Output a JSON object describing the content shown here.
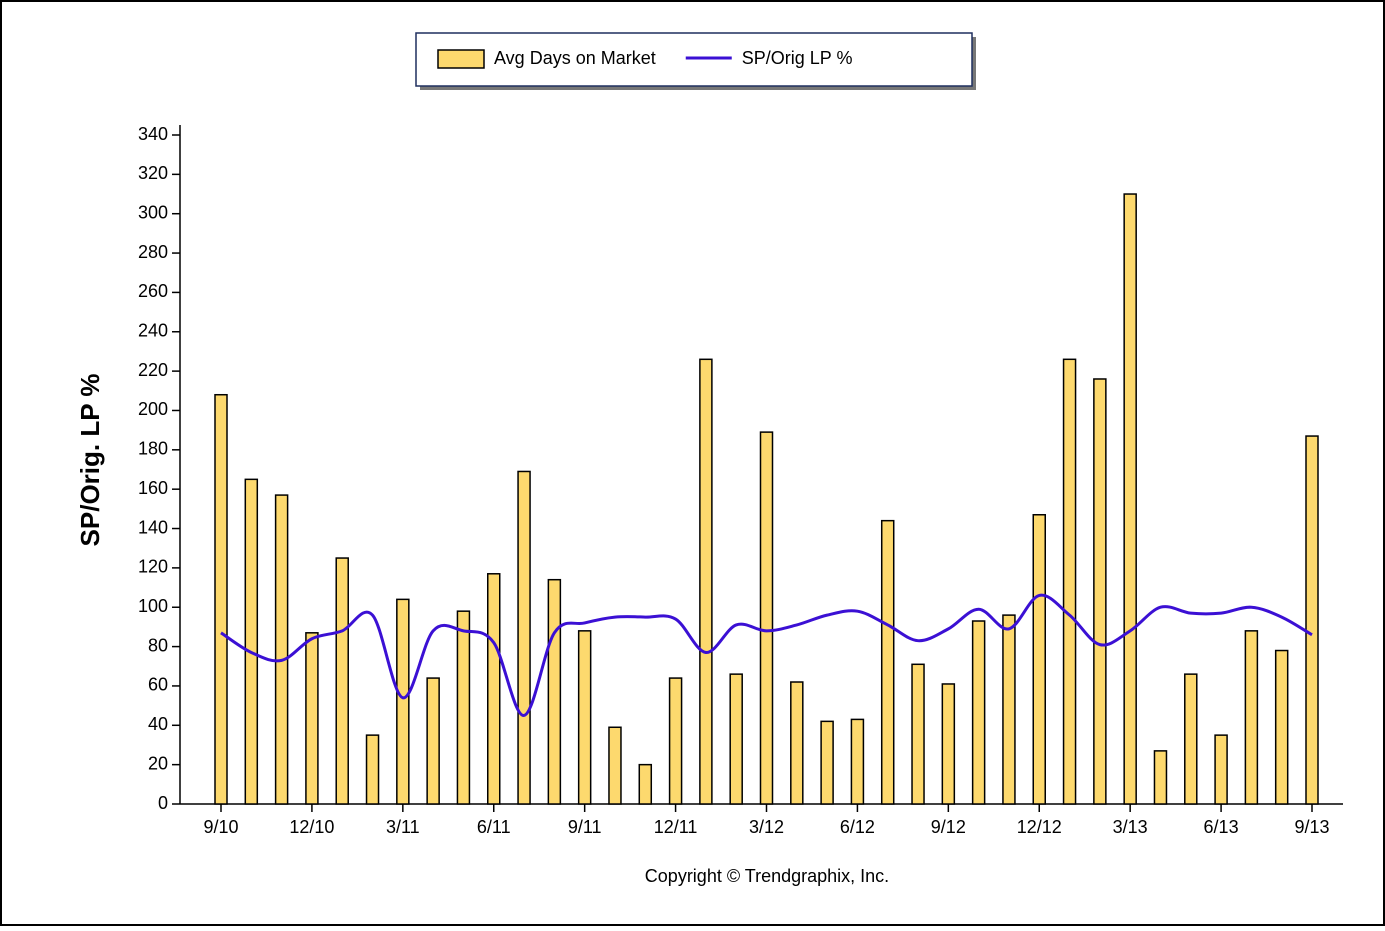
{
  "chart_data": {
    "type": "bar",
    "y_label": "SP/Orig. LP %",
    "copyright": "Copyright © Trendgraphix, Inc.",
    "categories": [
      "9/10",
      null,
      null,
      "12/10",
      null,
      null,
      "3/11",
      null,
      null,
      "6/11",
      null,
      null,
      "9/11",
      null,
      null,
      "12/11",
      null,
      null,
      "3/12",
      null,
      null,
      "6/12",
      null,
      null,
      "9/12",
      null,
      null,
      "12/12",
      null,
      null,
      "3/13",
      null,
      null,
      "6/13",
      null,
      null,
      "9/13"
    ],
    "series": [
      {
        "name": "Avg Days on Market",
        "type": "bar",
        "color": "#fdd96e",
        "values": [
          208,
          165,
          157,
          87,
          125,
          35,
          104,
          64,
          98,
          117,
          169,
          114,
          88,
          39,
          20,
          64,
          226,
          66,
          189,
          62,
          42,
          43,
          144,
          71,
          61,
          93,
          96,
          147,
          226,
          216,
          310,
          27,
          66,
          35,
          88,
          78,
          187
        ]
      },
      {
        "name": "SP/Orig LP %",
        "type": "line",
        "color": "#3b10d4",
        "values": [
          87,
          77,
          73,
          84,
          88,
          96,
          54,
          88,
          88,
          82,
          45,
          87,
          92,
          95,
          95,
          94,
          77,
          91,
          88,
          91,
          96,
          98,
          91,
          83,
          89,
          99,
          89,
          106,
          96,
          81,
          88,
          100,
          97,
          97,
          100,
          95,
          86
        ]
      }
    ],
    "ylim": [
      0,
      340
    ],
    "yticks": [
      0,
      20,
      40,
      60,
      80,
      100,
      120,
      140,
      160,
      180,
      200,
      220,
      240,
      260,
      280,
      300,
      320,
      340
    ],
    "legend": "top"
  }
}
